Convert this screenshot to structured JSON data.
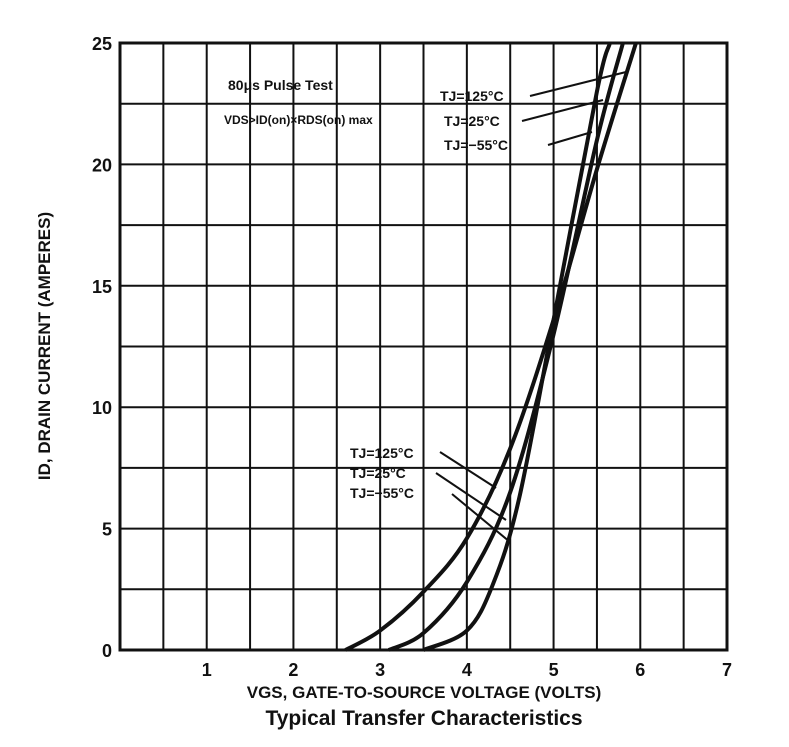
{
  "chart_data": {
    "type": "line",
    "title": "Typical Transfer Characteristics",
    "xlabel": "VGS, GATE-TO-SOURCE VOLTAGE (VOLTS)",
    "ylabel": "ID, DRAIN CURRENT (AMPERES)",
    "xlim": [
      0,
      7
    ],
    "ylim": [
      0,
      25
    ],
    "grid": true,
    "x_ticks": [
      "1",
      "2",
      "3",
      "4",
      "5",
      "6",
      "7"
    ],
    "y_ticks": [
      "0",
      "5",
      "10",
      "15",
      "20",
      "25"
    ],
    "series": [
      {
        "name": "TJ=125°C",
        "x": [
          2.6,
          3.0,
          3.5,
          4.0,
          4.5,
          5.0,
          5.5,
          5.95
        ],
        "y": [
          0,
          0.8,
          2.4,
          4.6,
          8.3,
          13.6,
          19.8,
          25
        ]
      },
      {
        "name": "TJ=25°C",
        "x": [
          3.1,
          3.5,
          4.0,
          4.5,
          5.0,
          5.5,
          5.8
        ],
        "y": [
          0,
          0.7,
          2.8,
          6.5,
          13.0,
          21.0,
          25
        ]
      },
      {
        "name": "TJ=-55°C",
        "x": [
          3.5,
          4.0,
          4.3,
          4.6,
          5.0,
          5.5,
          5.65
        ],
        "y": [
          0,
          0.8,
          2.7,
          6.2,
          13.6,
          23.0,
          25
        ]
      }
    ],
    "annotations": {
      "pulse_test": "80μs Pulse Test",
      "condition": "VDS>ID(on)×RDS(on) max",
      "upper_labels": [
        "TJ=125°C",
        "TJ=25°C",
        "TJ=−55°C"
      ],
      "lower_labels": [
        "TJ=125°C",
        "TJ=25°C",
        "TJ=−55°C"
      ]
    }
  }
}
